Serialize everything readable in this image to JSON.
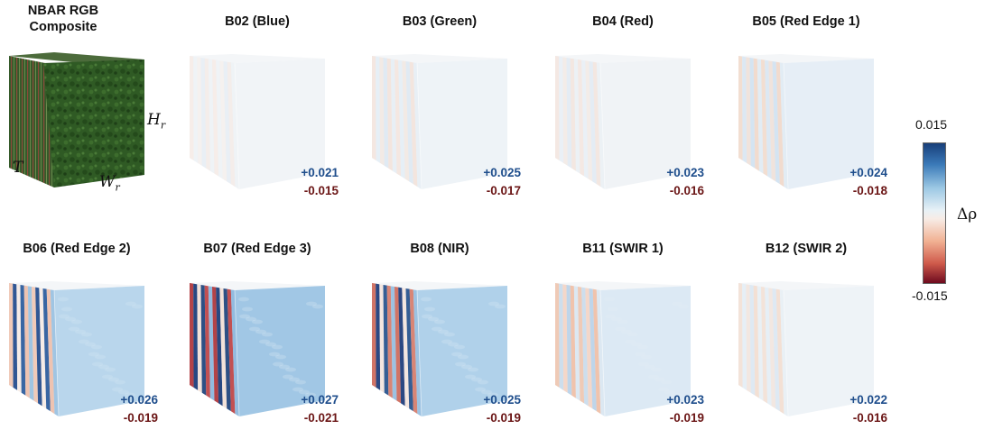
{
  "rgb": {
    "title_line1": "NBAR RGB",
    "title_line2": "Composite",
    "axis_h": "H",
    "axis_h_sub": "r",
    "axis_w": "W",
    "axis_w_sub": "r",
    "axis_t": "T"
  },
  "colorbar": {
    "max_label": "0.015",
    "min_label": "-0.015",
    "label": "Δρ",
    "max_value": 0.015,
    "min_value": -0.015
  },
  "panels": [
    {
      "title": "B02 (Blue)",
      "max_label": "+0.021",
      "min_label": "-0.015",
      "intensity": 0.05,
      "front": "#f1f4f7",
      "side_base": "#eef0f3",
      "stripes": [
        "#f6ece8",
        "#eef2f6",
        "#f4f0ee",
        "#e8eef4",
        "#f3ece9",
        "#eef2f5"
      ]
    },
    {
      "title": "B03 (Green)",
      "max_label": "+0.025",
      "min_label": "-0.017",
      "intensity": 0.12,
      "front": "#eef3f7",
      "side_base": "#edf0f3",
      "stripes": [
        "#f4e6df",
        "#e6eef5",
        "#f2e9e4",
        "#dfe9f2",
        "#f3e4dc",
        "#e8eef4"
      ]
    },
    {
      "title": "B04 (Red)",
      "max_label": "+0.023",
      "min_label": "-0.016",
      "intensity": 0.1,
      "front": "#f0f3f6",
      "side_base": "#eef0f3",
      "stripes": [
        "#f3e7e1",
        "#e9eff5",
        "#f2ebe7",
        "#e3ebf3",
        "#f2e6df",
        "#ebf0f4"
      ]
    },
    {
      "title": "B05 (Red Edge 1)",
      "max_label": "+0.024",
      "min_label": "-0.018",
      "intensity": 0.2,
      "front": "#e6eef6",
      "side_base": "#ecf0f3",
      "stripes": [
        "#f2dccf",
        "#dbe7f2",
        "#f0e2da",
        "#d3e3f1",
        "#f1d9cb",
        "#e2ebf3"
      ]
    },
    {
      "title": "B06 (Red Edge 2)",
      "max_label": "+0.026",
      "min_label": "-0.019",
      "intensity": 0.7,
      "front": "#b9d6ec",
      "side_base": "#e9ecf0",
      "stripes": [
        "#f0c8b5",
        "#274f8e",
        "#f7ece6",
        "#2f5f9e",
        "#eec1ad",
        "#9cc3e1"
      ]
    },
    {
      "title": "B07 (Red Edge 3)",
      "max_label": "+0.027",
      "min_label": "-0.021",
      "intensity": 1.0,
      "front": "#a1c7e5",
      "side_base": "#e5e8ec",
      "stripes": [
        "#b03a3f",
        "#1e3f7c",
        "#f3e1d8",
        "#23487f",
        "#c0484a",
        "#8db8de"
      ]
    },
    {
      "title": "B08 (NIR)",
      "max_label": "+0.025",
      "min_label": "-0.019",
      "intensity": 0.85,
      "front": "#b0d1ea",
      "side_base": "#e7eaee",
      "stripes": [
        "#d06e5e",
        "#223f7c",
        "#f4e6de",
        "#2b568f",
        "#d7806f",
        "#98c0e0"
      ]
    },
    {
      "title": "B11 (SWIR 1)",
      "max_label": "+0.023",
      "min_label": "-0.019",
      "intensity": 0.35,
      "front": "#dce9f4",
      "side_base": "#ebeef2",
      "stripes": [
        "#efc7b2",
        "#cbdcec",
        "#f4d5c6",
        "#bcd3e9",
        "#f0c0a8",
        "#dbe7f1"
      ]
    },
    {
      "title": "B12 (SWIR 2)",
      "max_label": "+0.022",
      "min_label": "-0.016",
      "intensity": 0.12,
      "front": "#eef3f7",
      "side_base": "#edf0f3",
      "stripes": [
        "#f3e1d7",
        "#e6eef5",
        "#f2e6df",
        "#dde8f2",
        "#f3ded2",
        "#e9eff4"
      ]
    }
  ]
}
